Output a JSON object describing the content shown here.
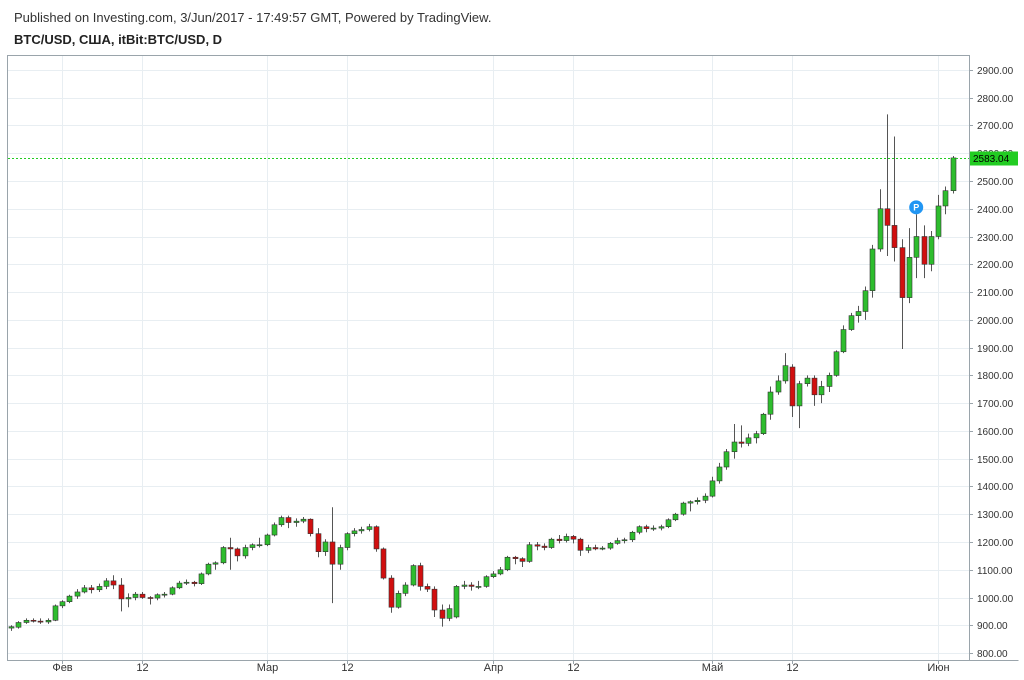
{
  "header": {
    "published": "Published on Investing.com, 3/Jun/2017 - 17:49:57 GMT, Powered by TradingView.",
    "symbol": "BTC/USD, США, itBit:BTC/USD, D"
  },
  "colors": {
    "up": "#2ebd2e",
    "down": "#d10f0f",
    "wick": "#555555",
    "last_price": "#22cc22",
    "grid": "#e8eef2",
    "marker": "#2196f3"
  },
  "chart_data": {
    "type": "candlestick",
    "ylim": [
      775,
      2950
    ],
    "y_ticks": [
      800,
      900,
      1000,
      1100,
      1200,
      1300,
      1400,
      1500,
      1600,
      1700,
      1800,
      1900,
      2000,
      2100,
      2200,
      2300,
      2400,
      2500,
      2600,
      2700,
      2800,
      2900
    ],
    "y_tick_labels": [
      "800.00",
      "900.00",
      "1000.00",
      "1100.00",
      "1200.00",
      "1300.00",
      "1400.00",
      "1500.00",
      "1600.00",
      "1700.00",
      "1800.00",
      "1900.00",
      "2000.00",
      "2100.00",
      "2200.00",
      "2300.00",
      "2400.00",
      "2500.00",
      "2600.00",
      "2700.00",
      "2800.00",
      "2900.00"
    ],
    "x_ticks": [
      {
        "label": "Фев",
        "date": "2017-02-01"
      },
      {
        "label": "12",
        "date": "2017-02-12"
      },
      {
        "label": "Мар",
        "date": "2017-03-01"
      },
      {
        "label": "12",
        "date": "2017-03-12"
      },
      {
        "label": "Апр",
        "date": "2017-04-01"
      },
      {
        "label": "12",
        "date": "2017-04-12"
      },
      {
        "label": "Май",
        "date": "2017-05-01"
      },
      {
        "label": "12",
        "date": "2017-05-12"
      },
      {
        "label": "Июн",
        "date": "2017-06-01"
      }
    ],
    "last_price": 2583.04,
    "last_price_label": "2583.04",
    "marker": {
      "label": "P",
      "date": "2017-05-29",
      "price": 2405
    },
    "candles": [
      {
        "date": "2017-01-25",
        "o": 890,
        "h": 900,
        "l": 880,
        "c": 895
      },
      {
        "date": "2017-01-26",
        "o": 893,
        "h": 915,
        "l": 888,
        "c": 910
      },
      {
        "date": "2017-01-27",
        "o": 910,
        "h": 925,
        "l": 905,
        "c": 918
      },
      {
        "date": "2017-01-28",
        "o": 918,
        "h": 925,
        "l": 910,
        "c": 915
      },
      {
        "date": "2017-01-29",
        "o": 915,
        "h": 925,
        "l": 905,
        "c": 912
      },
      {
        "date": "2017-01-30",
        "o": 912,
        "h": 925,
        "l": 905,
        "c": 918
      },
      {
        "date": "2017-01-31",
        "o": 918,
        "h": 975,
        "l": 915,
        "c": 970
      },
      {
        "date": "2017-02-01",
        "o": 970,
        "h": 990,
        "l": 962,
        "c": 985
      },
      {
        "date": "2017-02-02",
        "o": 985,
        "h": 1010,
        "l": 980,
        "c": 1005
      },
      {
        "date": "2017-02-03",
        "o": 1005,
        "h": 1030,
        "l": 995,
        "c": 1020
      },
      {
        "date": "2017-02-04",
        "o": 1020,
        "h": 1045,
        "l": 1015,
        "c": 1035
      },
      {
        "date": "2017-02-05",
        "o": 1035,
        "h": 1045,
        "l": 1015,
        "c": 1028
      },
      {
        "date": "2017-02-06",
        "o": 1028,
        "h": 1050,
        "l": 1020,
        "c": 1040
      },
      {
        "date": "2017-02-07",
        "o": 1040,
        "h": 1070,
        "l": 1030,
        "c": 1060
      },
      {
        "date": "2017-02-08",
        "o": 1060,
        "h": 1080,
        "l": 1030,
        "c": 1045
      },
      {
        "date": "2017-02-09",
        "o": 1045,
        "h": 1070,
        "l": 950,
        "c": 995
      },
      {
        "date": "2017-02-10",
        "o": 995,
        "h": 1015,
        "l": 965,
        "c": 1000
      },
      {
        "date": "2017-02-11",
        "o": 1000,
        "h": 1020,
        "l": 990,
        "c": 1012
      },
      {
        "date": "2017-02-12",
        "o": 1012,
        "h": 1020,
        "l": 995,
        "c": 1000
      },
      {
        "date": "2017-02-13",
        "o": 1000,
        "h": 1005,
        "l": 975,
        "c": 998
      },
      {
        "date": "2017-02-14",
        "o": 998,
        "h": 1015,
        "l": 990,
        "c": 1010
      },
      {
        "date": "2017-02-15",
        "o": 1010,
        "h": 1020,
        "l": 1000,
        "c": 1012
      },
      {
        "date": "2017-02-16",
        "o": 1012,
        "h": 1040,
        "l": 1008,
        "c": 1035
      },
      {
        "date": "2017-02-17",
        "o": 1035,
        "h": 1060,
        "l": 1030,
        "c": 1052
      },
      {
        "date": "2017-02-18",
        "o": 1052,
        "h": 1065,
        "l": 1045,
        "c": 1055
      },
      {
        "date": "2017-02-19",
        "o": 1055,
        "h": 1060,
        "l": 1040,
        "c": 1050
      },
      {
        "date": "2017-02-20",
        "o": 1050,
        "h": 1090,
        "l": 1045,
        "c": 1085
      },
      {
        "date": "2017-02-21",
        "o": 1085,
        "h": 1125,
        "l": 1080,
        "c": 1120
      },
      {
        "date": "2017-02-22",
        "o": 1120,
        "h": 1130,
        "l": 1100,
        "c": 1125
      },
      {
        "date": "2017-02-23",
        "o": 1125,
        "h": 1185,
        "l": 1120,
        "c": 1180
      },
      {
        "date": "2017-02-24",
        "o": 1180,
        "h": 1215,
        "l": 1100,
        "c": 1175
      },
      {
        "date": "2017-02-25",
        "o": 1175,
        "h": 1180,
        "l": 1130,
        "c": 1150
      },
      {
        "date": "2017-02-26",
        "o": 1150,
        "h": 1190,
        "l": 1140,
        "c": 1180
      },
      {
        "date": "2017-02-27",
        "o": 1180,
        "h": 1195,
        "l": 1170,
        "c": 1190
      },
      {
        "date": "2017-02-28",
        "o": 1190,
        "h": 1215,
        "l": 1180,
        "c": 1190
      },
      {
        "date": "2017-03-01",
        "o": 1190,
        "h": 1230,
        "l": 1185,
        "c": 1225
      },
      {
        "date": "2017-03-02",
        "o": 1225,
        "h": 1270,
        "l": 1220,
        "c": 1262
      },
      {
        "date": "2017-03-03",
        "o": 1262,
        "h": 1295,
        "l": 1255,
        "c": 1288
      },
      {
        "date": "2017-03-04",
        "o": 1288,
        "h": 1295,
        "l": 1250,
        "c": 1270
      },
      {
        "date": "2017-03-05",
        "o": 1270,
        "h": 1285,
        "l": 1255,
        "c": 1275
      },
      {
        "date": "2017-03-06",
        "o": 1275,
        "h": 1290,
        "l": 1268,
        "c": 1282
      },
      {
        "date": "2017-03-07",
        "o": 1282,
        "h": 1285,
        "l": 1220,
        "c": 1230
      },
      {
        "date": "2017-03-08",
        "o": 1230,
        "h": 1250,
        "l": 1145,
        "c": 1165
      },
      {
        "date": "2017-03-09",
        "o": 1165,
        "h": 1210,
        "l": 1150,
        "c": 1200
      },
      {
        "date": "2017-03-10",
        "o": 1200,
        "h": 1325,
        "l": 980,
        "c": 1120
      },
      {
        "date": "2017-03-11",
        "o": 1120,
        "h": 1190,
        "l": 1100,
        "c": 1180
      },
      {
        "date": "2017-03-12",
        "o": 1180,
        "h": 1235,
        "l": 1170,
        "c": 1230
      },
      {
        "date": "2017-03-13",
        "o": 1230,
        "h": 1250,
        "l": 1220,
        "c": 1240
      },
      {
        "date": "2017-03-14",
        "o": 1240,
        "h": 1255,
        "l": 1230,
        "c": 1245
      },
      {
        "date": "2017-03-15",
        "o": 1245,
        "h": 1265,
        "l": 1238,
        "c": 1255
      },
      {
        "date": "2017-03-16",
        "o": 1255,
        "h": 1260,
        "l": 1165,
        "c": 1175
      },
      {
        "date": "2017-03-17",
        "o": 1175,
        "h": 1180,
        "l": 1065,
        "c": 1070
      },
      {
        "date": "2017-03-18",
        "o": 1070,
        "h": 1080,
        "l": 945,
        "c": 965
      },
      {
        "date": "2017-03-19",
        "o": 965,
        "h": 1025,
        "l": 960,
        "c": 1015
      },
      {
        "date": "2017-03-20",
        "o": 1015,
        "h": 1055,
        "l": 1005,
        "c": 1045
      },
      {
        "date": "2017-03-21",
        "o": 1045,
        "h": 1120,
        "l": 1040,
        "c": 1115
      },
      {
        "date": "2017-03-22",
        "o": 1115,
        "h": 1125,
        "l": 1025,
        "c": 1040
      },
      {
        "date": "2017-03-23",
        "o": 1040,
        "h": 1050,
        "l": 1020,
        "c": 1030
      },
      {
        "date": "2017-03-24",
        "o": 1030,
        "h": 1040,
        "l": 930,
        "c": 955
      },
      {
        "date": "2017-03-25",
        "o": 955,
        "h": 975,
        "l": 895,
        "c": 925
      },
      {
        "date": "2017-03-26",
        "o": 925,
        "h": 975,
        "l": 915,
        "c": 960
      },
      {
        "date": "2017-03-27",
        "o": 930,
        "h": 1045,
        "l": 925,
        "c": 1040
      },
      {
        "date": "2017-03-28",
        "o": 1040,
        "h": 1060,
        "l": 1030,
        "c": 1045
      },
      {
        "date": "2017-03-29",
        "o": 1045,
        "h": 1055,
        "l": 1025,
        "c": 1040
      },
      {
        "date": "2017-03-30",
        "o": 1040,
        "h": 1060,
        "l": 1030,
        "c": 1040
      },
      {
        "date": "2017-03-31",
        "o": 1040,
        "h": 1080,
        "l": 1035,
        "c": 1075
      },
      {
        "date": "2017-04-01",
        "o": 1075,
        "h": 1095,
        "l": 1070,
        "c": 1085
      },
      {
        "date": "2017-04-02",
        "o": 1085,
        "h": 1110,
        "l": 1080,
        "c": 1100
      },
      {
        "date": "2017-04-03",
        "o": 1100,
        "h": 1150,
        "l": 1095,
        "c": 1145
      },
      {
        "date": "2017-04-04",
        "o": 1145,
        "h": 1150,
        "l": 1120,
        "c": 1140
      },
      {
        "date": "2017-04-05",
        "o": 1140,
        "h": 1145,
        "l": 1110,
        "c": 1130
      },
      {
        "date": "2017-04-06",
        "o": 1130,
        "h": 1200,
        "l": 1125,
        "c": 1190
      },
      {
        "date": "2017-04-07",
        "o": 1190,
        "h": 1200,
        "l": 1170,
        "c": 1185
      },
      {
        "date": "2017-04-08",
        "o": 1185,
        "h": 1195,
        "l": 1170,
        "c": 1180
      },
      {
        "date": "2017-04-09",
        "o": 1180,
        "h": 1215,
        "l": 1175,
        "c": 1210
      },
      {
        "date": "2017-04-10",
        "o": 1210,
        "h": 1225,
        "l": 1195,
        "c": 1205
      },
      {
        "date": "2017-04-11",
        "o": 1205,
        "h": 1230,
        "l": 1198,
        "c": 1220
      },
      {
        "date": "2017-04-12",
        "o": 1220,
        "h": 1225,
        "l": 1195,
        "c": 1210
      },
      {
        "date": "2017-04-13",
        "o": 1210,
        "h": 1215,
        "l": 1150,
        "c": 1170
      },
      {
        "date": "2017-04-14",
        "o": 1170,
        "h": 1190,
        "l": 1160,
        "c": 1180
      },
      {
        "date": "2017-04-15",
        "o": 1180,
        "h": 1190,
        "l": 1170,
        "c": 1175
      },
      {
        "date": "2017-04-16",
        "o": 1175,
        "h": 1185,
        "l": 1170,
        "c": 1178
      },
      {
        "date": "2017-04-17",
        "o": 1178,
        "h": 1200,
        "l": 1172,
        "c": 1195
      },
      {
        "date": "2017-04-18",
        "o": 1195,
        "h": 1215,
        "l": 1190,
        "c": 1205
      },
      {
        "date": "2017-04-19",
        "o": 1205,
        "h": 1215,
        "l": 1195,
        "c": 1208
      },
      {
        "date": "2017-04-20",
        "o": 1208,
        "h": 1240,
        "l": 1200,
        "c": 1235
      },
      {
        "date": "2017-04-21",
        "o": 1235,
        "h": 1260,
        "l": 1228,
        "c": 1255
      },
      {
        "date": "2017-04-22",
        "o": 1255,
        "h": 1262,
        "l": 1235,
        "c": 1248
      },
      {
        "date": "2017-04-23",
        "o": 1248,
        "h": 1260,
        "l": 1240,
        "c": 1250
      },
      {
        "date": "2017-04-24",
        "o": 1250,
        "h": 1262,
        "l": 1242,
        "c": 1255
      },
      {
        "date": "2017-04-25",
        "o": 1255,
        "h": 1285,
        "l": 1250,
        "c": 1280
      },
      {
        "date": "2017-04-26",
        "o": 1280,
        "h": 1305,
        "l": 1275,
        "c": 1300
      },
      {
        "date": "2017-04-27",
        "o": 1300,
        "h": 1345,
        "l": 1295,
        "c": 1340
      },
      {
        "date": "2017-04-28",
        "o": 1340,
        "h": 1350,
        "l": 1310,
        "c": 1345
      },
      {
        "date": "2017-04-29",
        "o": 1345,
        "h": 1360,
        "l": 1335,
        "c": 1350
      },
      {
        "date": "2017-04-30",
        "o": 1350,
        "h": 1375,
        "l": 1340,
        "c": 1365
      },
      {
        "date": "2017-05-01",
        "o": 1365,
        "h": 1435,
        "l": 1360,
        "c": 1420
      },
      {
        "date": "2017-05-02",
        "o": 1420,
        "h": 1485,
        "l": 1410,
        "c": 1470
      },
      {
        "date": "2017-05-03",
        "o": 1470,
        "h": 1535,
        "l": 1460,
        "c": 1525
      },
      {
        "date": "2017-05-04",
        "o": 1525,
        "h": 1625,
        "l": 1500,
        "c": 1560
      },
      {
        "date": "2017-05-05",
        "o": 1560,
        "h": 1620,
        "l": 1540,
        "c": 1555
      },
      {
        "date": "2017-05-06",
        "o": 1555,
        "h": 1590,
        "l": 1545,
        "c": 1575
      },
      {
        "date": "2017-05-07",
        "o": 1575,
        "h": 1600,
        "l": 1555,
        "c": 1590
      },
      {
        "date": "2017-05-08",
        "o": 1590,
        "h": 1665,
        "l": 1585,
        "c": 1660
      },
      {
        "date": "2017-05-09",
        "o": 1660,
        "h": 1760,
        "l": 1640,
        "c": 1740
      },
      {
        "date": "2017-05-10",
        "o": 1740,
        "h": 1800,
        "l": 1730,
        "c": 1780
      },
      {
        "date": "2017-05-11",
        "o": 1780,
        "h": 1880,
        "l": 1770,
        "c": 1835
      },
      {
        "date": "2017-05-12",
        "o": 1830,
        "h": 1840,
        "l": 1650,
        "c": 1690
      },
      {
        "date": "2017-05-13",
        "o": 1690,
        "h": 1780,
        "l": 1610,
        "c": 1770
      },
      {
        "date": "2017-05-14",
        "o": 1770,
        "h": 1800,
        "l": 1760,
        "c": 1790
      },
      {
        "date": "2017-05-15",
        "o": 1790,
        "h": 1800,
        "l": 1690,
        "c": 1730
      },
      {
        "date": "2017-05-16",
        "o": 1730,
        "h": 1780,
        "l": 1700,
        "c": 1760
      },
      {
        "date": "2017-05-17",
        "o": 1760,
        "h": 1810,
        "l": 1740,
        "c": 1800
      },
      {
        "date": "2017-05-18",
        "o": 1800,
        "h": 1890,
        "l": 1795,
        "c": 1885
      },
      {
        "date": "2017-05-19",
        "o": 1885,
        "h": 1980,
        "l": 1880,
        "c": 1965
      },
      {
        "date": "2017-05-20",
        "o": 1965,
        "h": 2025,
        "l": 1960,
        "c": 2015
      },
      {
        "date": "2017-05-21",
        "o": 2015,
        "h": 2050,
        "l": 1990,
        "c": 2030
      },
      {
        "date": "2017-05-22",
        "o": 2030,
        "h": 2120,
        "l": 2000,
        "c": 2105
      },
      {
        "date": "2017-05-23",
        "o": 2105,
        "h": 2270,
        "l": 2080,
        "c": 2255
      },
      {
        "date": "2017-05-24",
        "o": 2255,
        "h": 2470,
        "l": 2245,
        "c": 2400
      },
      {
        "date": "2017-05-25",
        "o": 2400,
        "h": 2740,
        "l": 2230,
        "c": 2340
      },
      {
        "date": "2017-05-26",
        "o": 2340,
        "h": 2660,
        "l": 2210,
        "c": 2260
      },
      {
        "date": "2017-05-27",
        "o": 2260,
        "h": 2290,
        "l": 1895,
        "c": 2080
      },
      {
        "date": "2017-05-28",
        "o": 2080,
        "h": 2330,
        "l": 2060,
        "c": 2225
      },
      {
        "date": "2017-05-29",
        "o": 2225,
        "h": 2380,
        "l": 2150,
        "c": 2300
      },
      {
        "date": "2017-05-30",
        "o": 2300,
        "h": 2340,
        "l": 2150,
        "c": 2200
      },
      {
        "date": "2017-05-31",
        "o": 2200,
        "h": 2320,
        "l": 2175,
        "c": 2300
      },
      {
        "date": "2017-06-01",
        "o": 2300,
        "h": 2450,
        "l": 2290,
        "c": 2410
      },
      {
        "date": "2017-06-02",
        "o": 2410,
        "h": 2480,
        "l": 2380,
        "c": 2465
      },
      {
        "date": "2017-06-03",
        "o": 2465,
        "h": 2590,
        "l": 2455,
        "c": 2583
      }
    ]
  }
}
